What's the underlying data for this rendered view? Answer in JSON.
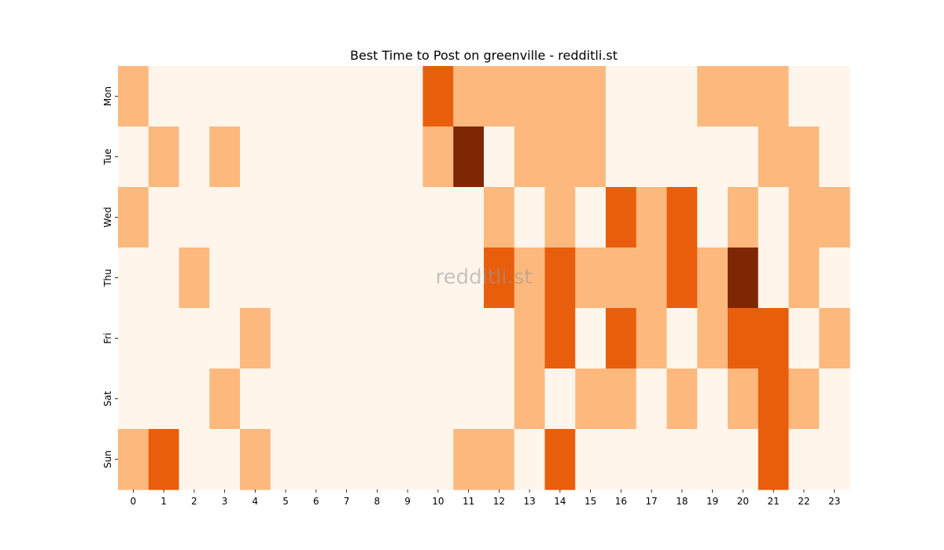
{
  "chart_data": {
    "type": "heatmap",
    "title": "Best Time to Post on greenville - redditli.st",
    "xlabel": "",
    "ylabel": "",
    "x": [
      "0",
      "1",
      "2",
      "3",
      "4",
      "5",
      "6",
      "7",
      "8",
      "9",
      "10",
      "11",
      "12",
      "13",
      "14",
      "15",
      "16",
      "17",
      "18",
      "19",
      "20",
      "21",
      "22",
      "23"
    ],
    "y": [
      "Mon",
      "Tue",
      "Wed",
      "Thu",
      "Fri",
      "Sat",
      "Sun"
    ],
    "values": [
      [
        1,
        0,
        0,
        0,
        0,
        0,
        0,
        0,
        0,
        0,
        2,
        1,
        1,
        1,
        1,
        1,
        0,
        0,
        0,
        1,
        1,
        1,
        0,
        0
      ],
      [
        0,
        1,
        0,
        1,
        0,
        0,
        0,
        0,
        0,
        0,
        1,
        3,
        0,
        1,
        1,
        1,
        0,
        0,
        0,
        0,
        0,
        1,
        1,
        0
      ],
      [
        1,
        0,
        0,
        0,
        0,
        0,
        0,
        0,
        0,
        0,
        0,
        0,
        1,
        0,
        1,
        0,
        2,
        1,
        2,
        0,
        1,
        0,
        1,
        1
      ],
      [
        0,
        0,
        1,
        0,
        0,
        0,
        0,
        0,
        0,
        0,
        0,
        0,
        2,
        1,
        2,
        1,
        1,
        1,
        2,
        1,
        3,
        0,
        1,
        0
      ],
      [
        0,
        0,
        0,
        0,
        1,
        0,
        0,
        0,
        0,
        0,
        0,
        0,
        0,
        1,
        2,
        0,
        2,
        1,
        0,
        1,
        2,
        2,
        0,
        1
      ],
      [
        0,
        0,
        0,
        1,
        0,
        0,
        0,
        0,
        0,
        0,
        0,
        0,
        0,
        1,
        0,
        1,
        1,
        0,
        1,
        0,
        1,
        2,
        1,
        0
      ],
      [
        1,
        2,
        0,
        0,
        1,
        0,
        0,
        0,
        0,
        0,
        0,
        1,
        1,
        0,
        2,
        0,
        0,
        0,
        0,
        0,
        0,
        2,
        0,
        0
      ]
    ],
    "colors": [
      "#fff5eb",
      "#fdb97d",
      "#e95e0d",
      "#7f2704"
    ],
    "legend": "none",
    "grid": false
  },
  "watermark": "redditli.st"
}
